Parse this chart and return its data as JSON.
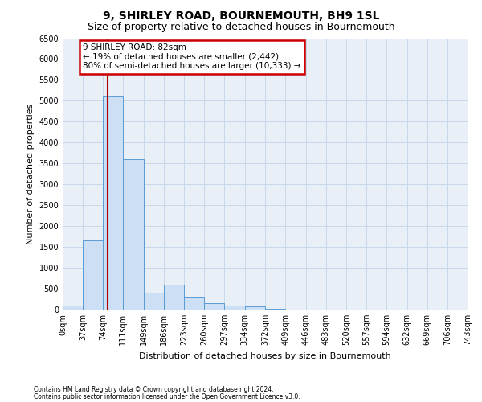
{
  "title": "9, SHIRLEY ROAD, BOURNEMOUTH, BH9 1SL",
  "subtitle": "Size of property relative to detached houses in Bournemouth",
  "xlabel": "Distribution of detached houses by size in Bournemouth",
  "ylabel": "Number of detached properties",
  "footnote1": "Contains HM Land Registry data © Crown copyright and database right 2024.",
  "footnote2": "Contains public sector information licensed under the Open Government Licence v3.0.",
  "annotation_line1": "9 SHIRLEY ROAD: 82sqm",
  "annotation_line2": "← 19% of detached houses are smaller (2,442)",
  "annotation_line3": "80% of semi-detached houses are larger (10,333) →",
  "bar_color": "#ccdff5",
  "bar_edge_color": "#5b9bd5",
  "vline_color": "#aa0000",
  "vline_x": 82,
  "ann_box_color": "#cc0000",
  "ylim_max": 6500,
  "bins": [
    0,
    37,
    74,
    111,
    149,
    186,
    223,
    260,
    297,
    334,
    372,
    409,
    446,
    483,
    520,
    557,
    594,
    632,
    669,
    706,
    743
  ],
  "bar_heights": [
    100,
    1650,
    5100,
    3600,
    400,
    600,
    280,
    150,
    100,
    70,
    20,
    5,
    3,
    2,
    1,
    1,
    0,
    0,
    0,
    0
  ],
  "tick_labels": [
    "0sqm",
    "37sqm",
    "74sqm",
    "111sqm",
    "149sqm",
    "186sqm",
    "223sqm",
    "260sqm",
    "297sqm",
    "334sqm",
    "372sqm",
    "409sqm",
    "446sqm",
    "483sqm",
    "520sqm",
    "557sqm",
    "594sqm",
    "632sqm",
    "669sqm",
    "706sqm",
    "743sqm"
  ],
  "yticks": [
    0,
    500,
    1000,
    1500,
    2000,
    2500,
    3000,
    3500,
    4000,
    4500,
    5000,
    5500,
    6000,
    6500
  ],
  "grid_color": "#c8d8e8",
  "plot_bg_color": "#e8eff6",
  "fig_bg_color": "#ffffff",
  "title_fontsize": 10,
  "subtitle_fontsize": 9,
  "axis_label_fontsize": 8,
  "tick_fontsize": 7,
  "annotation_fontsize": 7.5
}
